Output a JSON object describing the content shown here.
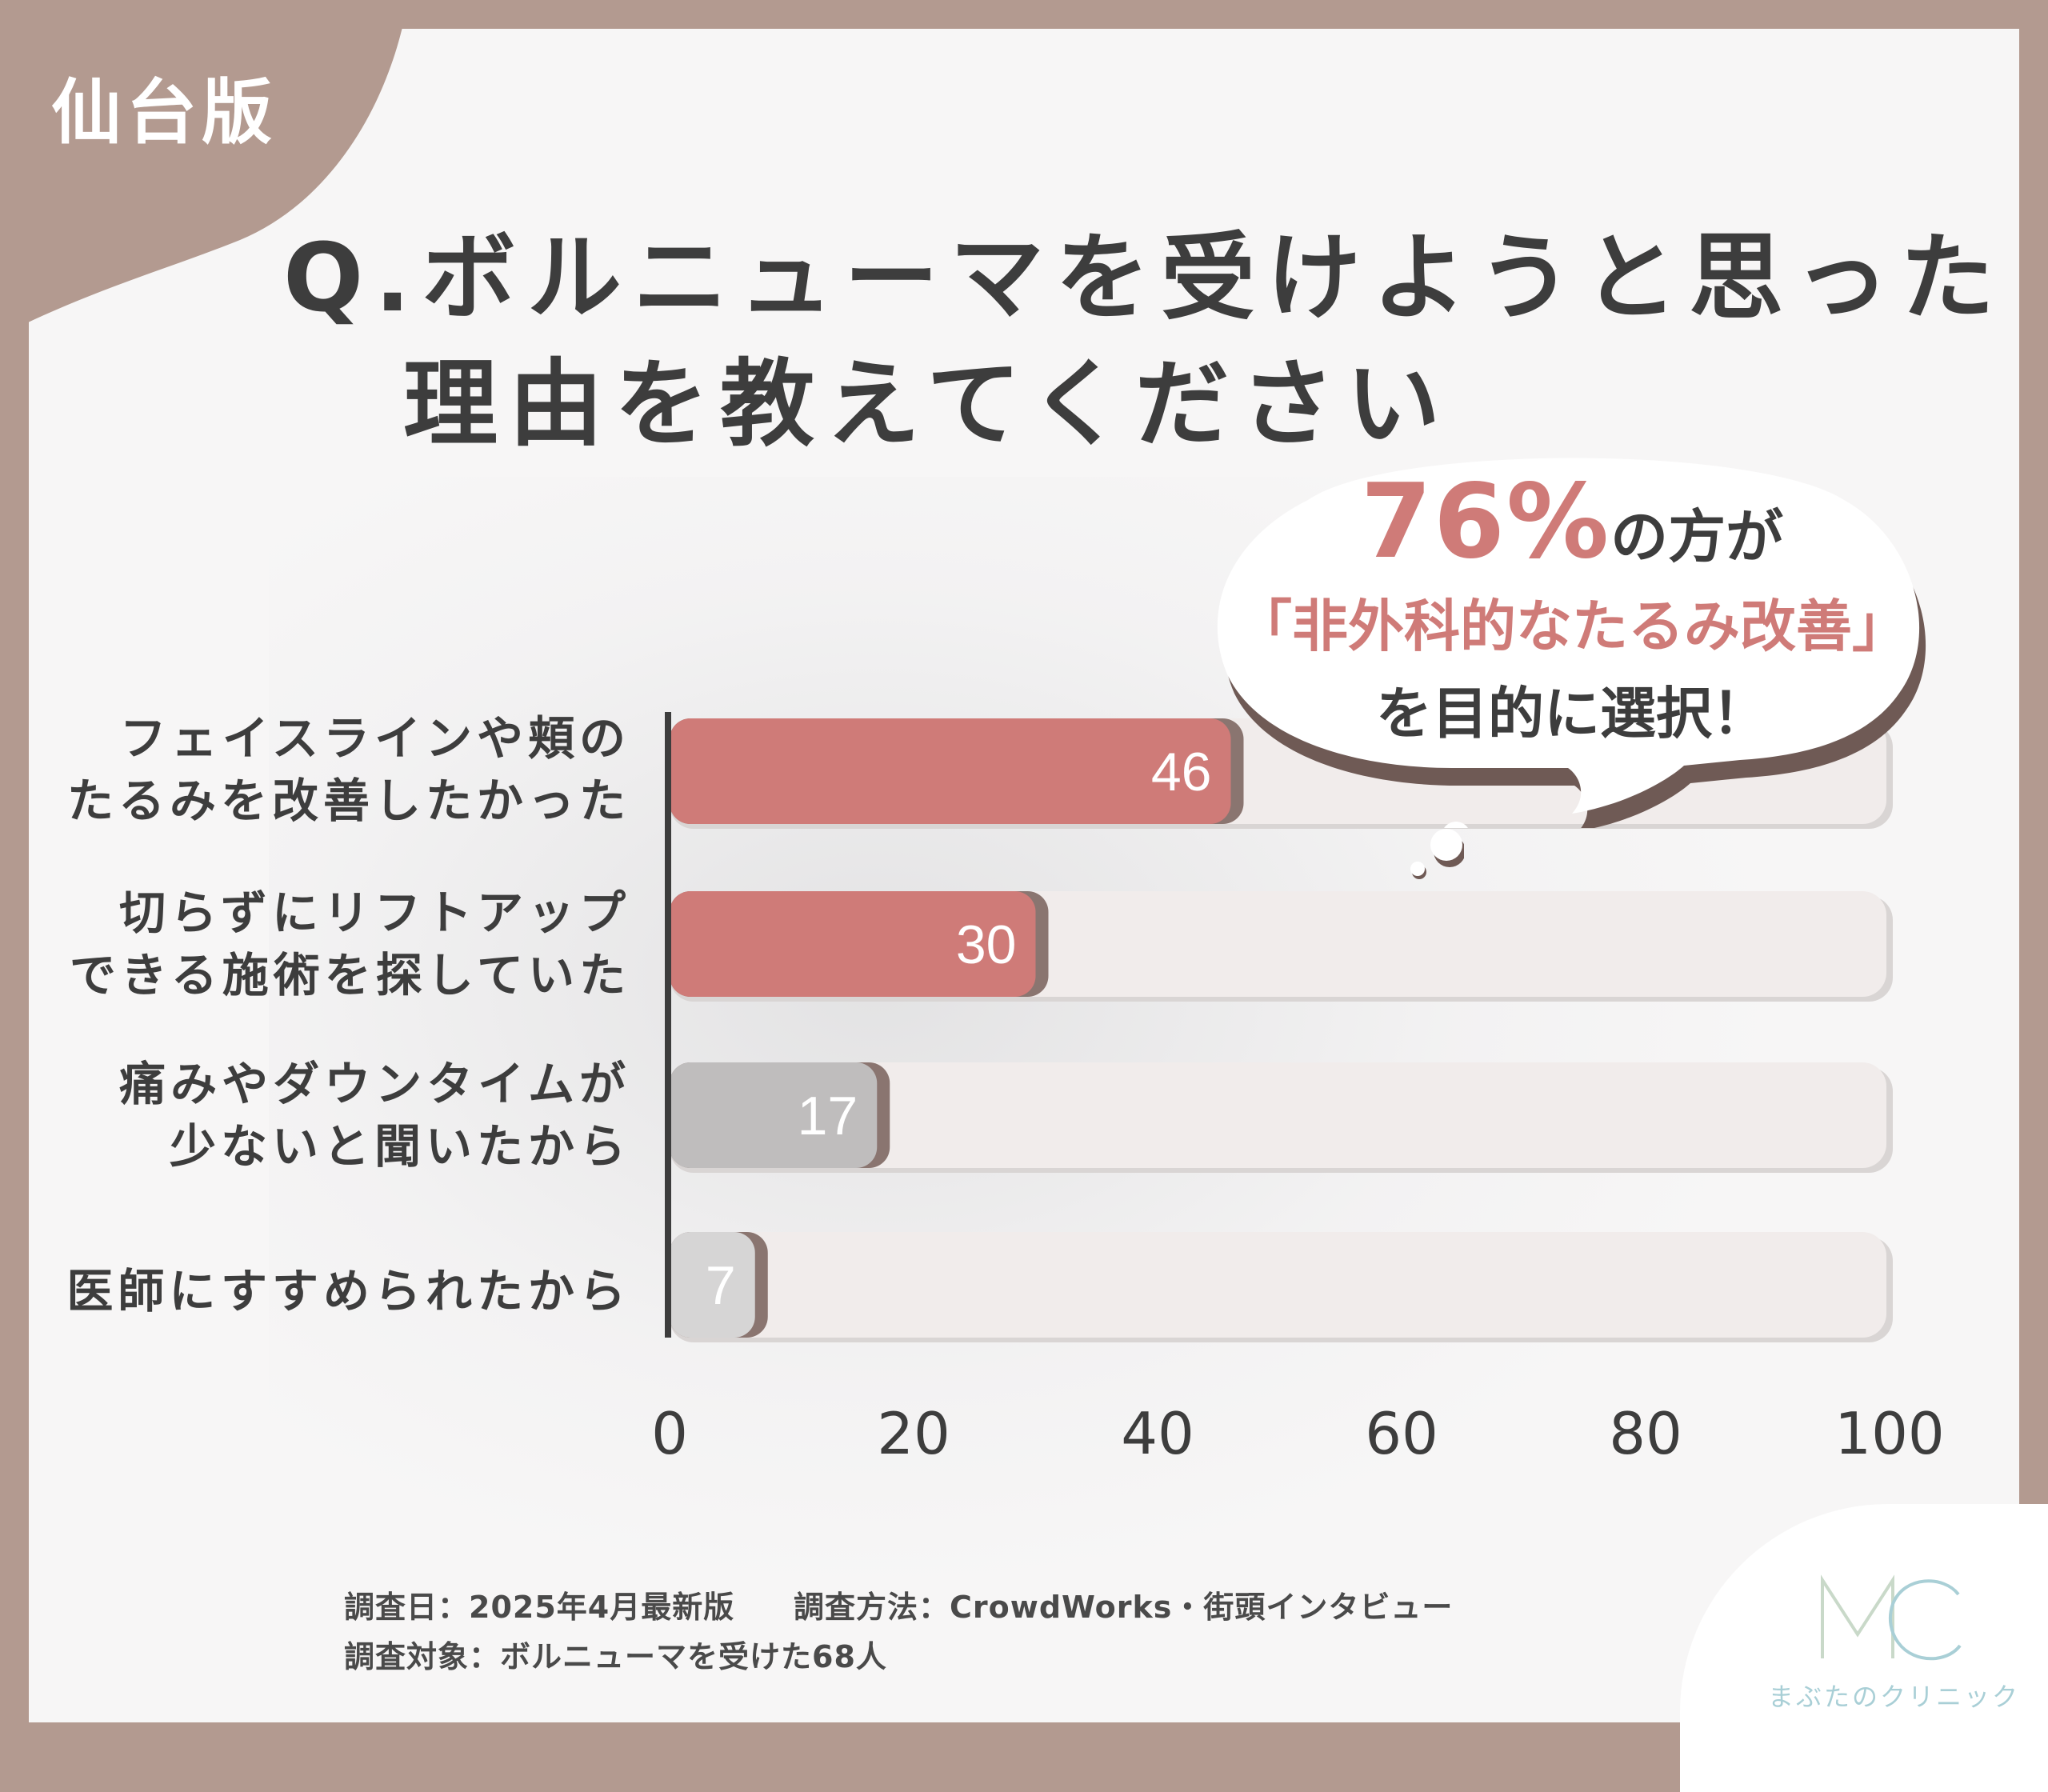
{
  "badge": "仙台版",
  "title": {
    "line1": "Q.ボルニューマを受けようと思った",
    "line2": "理由を教えてください"
  },
  "callout": {
    "percent": "76%",
    "after_percent": "の方が",
    "line2": "「非外科的なたるみ改善」",
    "line3": "を目的に選択！"
  },
  "chart_data": {
    "type": "bar",
    "orientation": "horizontal",
    "categories": [
      [
        "フェイスラインや頬の",
        "たるみを改善したかった"
      ],
      [
        "切らずにリフトアップ",
        "できる施術を探していた"
      ],
      [
        "痛みやダウンタイムが",
        "少ないと聞いたから"
      ],
      [
        "医師にすすめられたから"
      ]
    ],
    "values": [
      46,
      30,
      17,
      7
    ],
    "xlim": [
      0,
      100
    ],
    "xticks": [
      "0",
      "20",
      "40",
      "60",
      "80",
      "100"
    ],
    "bar_colors": [
      "#cf7b78",
      "#cf7b78",
      "#bfbdbd",
      "#d6d5d5"
    ],
    "track_color": "#f1eceb",
    "grid": false
  },
  "footer": {
    "date": "調査日：2025年4月最新版",
    "method": "調査方法：CrowdWorks・街頭インタビュー",
    "target": "調査対象：ボルニューマを受けた68人"
  },
  "logo": {
    "mark": "MC",
    "name": "まぶたのクリニック"
  }
}
